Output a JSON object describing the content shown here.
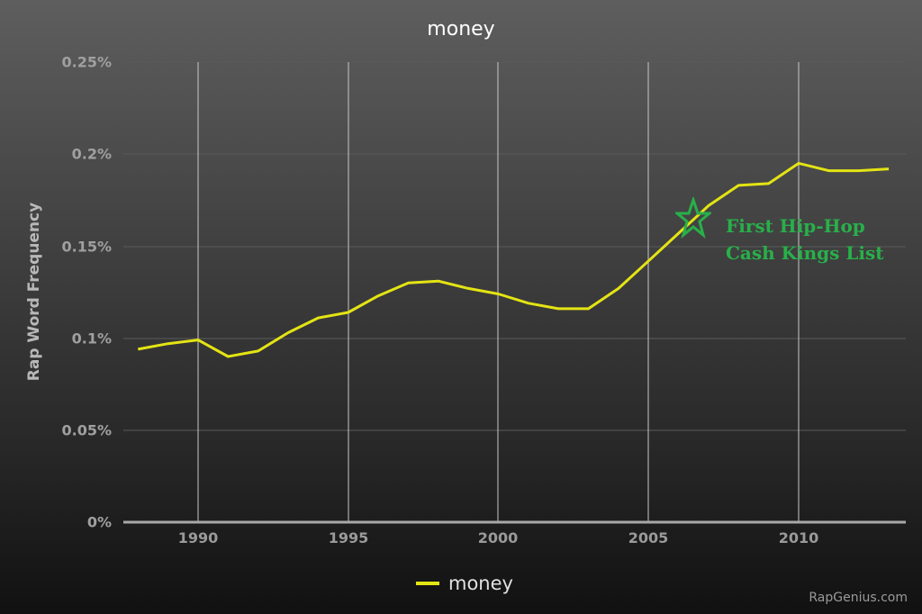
{
  "chart_data": {
    "type": "line",
    "title": "money",
    "xlabel": "",
    "ylabel": "Rap Word Frequency",
    "ylim": [
      0,
      0.25
    ],
    "xlim": [
      1987.5,
      2014
    ],
    "y_ticks": [
      "0%",
      "0.05%",
      "0.1%",
      "0.15%",
      "0.2%",
      "0.25%"
    ],
    "y_tick_values": [
      0,
      0.05,
      0.1,
      0.15,
      0.2,
      0.25
    ],
    "x_ticks": [
      "1990",
      "1995",
      "2000",
      "2005",
      "2010"
    ],
    "x_tick_values": [
      1990,
      1995,
      2000,
      2005,
      2010
    ],
    "grid": true,
    "legend_position": "bottom",
    "x": [
      1988,
      1989,
      1990,
      1991,
      1992,
      1993,
      1994,
      1995,
      1996,
      1997,
      1998,
      1999,
      2000,
      2001,
      2002,
      2003,
      2004,
      2005,
      2006,
      2007,
      2008,
      2009,
      2010,
      2011,
      2012,
      2013
    ],
    "series": [
      {
        "name": "money",
        "color": "#e4e414",
        "unit": "%",
        "values": [
          0.094,
          0.097,
          0.099,
          0.09,
          0.093,
          0.103,
          0.111,
          0.114,
          0.123,
          0.13,
          0.131,
          0.127,
          0.124,
          0.119,
          0.116,
          0.116,
          0.127,
          0.142,
          0.157,
          0.172,
          0.183,
          0.184,
          0.195,
          0.191,
          0.191,
          0.192
        ]
      }
    ],
    "annotations": [
      {
        "x": 2006.5,
        "y": 0.165,
        "marker": "star-outline",
        "text": "First Hip-Hop Cash Kings List",
        "color": "#28b04a"
      }
    ]
  },
  "header": {
    "title": "money"
  },
  "axis": {
    "ylabel": "Rap Word Frequency",
    "yticks": [
      "0%",
      "0.05%",
      "0.1%",
      "0.15%",
      "0.2%",
      "0.25%"
    ],
    "xticks": [
      "1990",
      "1995",
      "2000",
      "2005",
      "2010"
    ]
  },
  "annotation": {
    "line1": "First Hip-Hop",
    "line2": "Cash Kings List"
  },
  "legend": {
    "label": "money"
  },
  "footer": {
    "credit": "RapGenius.com"
  }
}
